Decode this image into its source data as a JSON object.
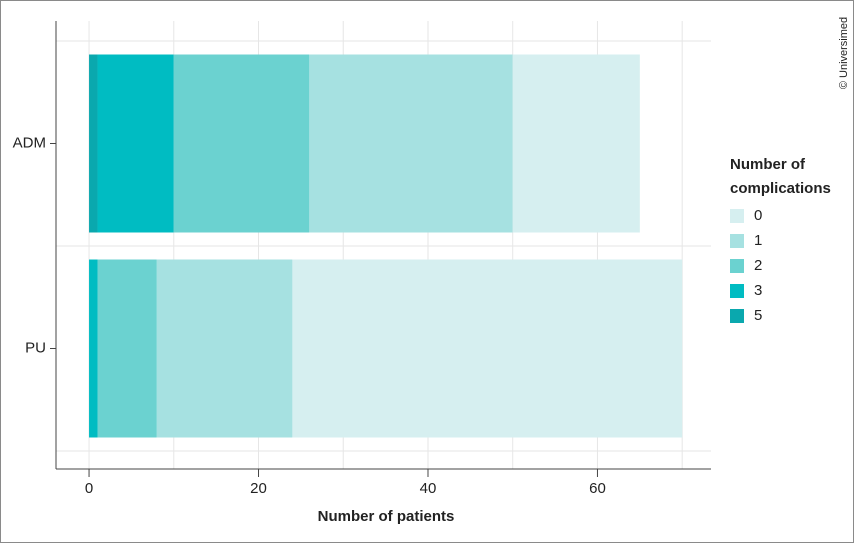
{
  "chart_data": {
    "type": "bar",
    "orientation": "horizontal",
    "stacked": true,
    "x_label": "Number of patients",
    "credit": "© Universimed",
    "legend_title": "Number of complications",
    "categories": [
      "ADM",
      "PU"
    ],
    "series": [
      {
        "name": "0",
        "color": "#d6eff0",
        "values": [
          15,
          46
        ]
      },
      {
        "name": "1",
        "color": "#a6e1e1",
        "values": [
          24,
          16
        ]
      },
      {
        "name": "2",
        "color": "#6bd2d0",
        "values": [
          16,
          7
        ]
      },
      {
        "name": "3",
        "color": "#00bcc2",
        "values": [
          9,
          1
        ]
      },
      {
        "name": "5",
        "color": "#0aa8ae",
        "values": [
          1,
          0
        ]
      }
    ],
    "xlim": [
      -3.9,
      73.4
    ],
    "xticks": [
      0,
      20,
      40,
      60
    ],
    "minor_xticks": [
      10,
      30,
      50,
      70
    ],
    "grid": true
  }
}
